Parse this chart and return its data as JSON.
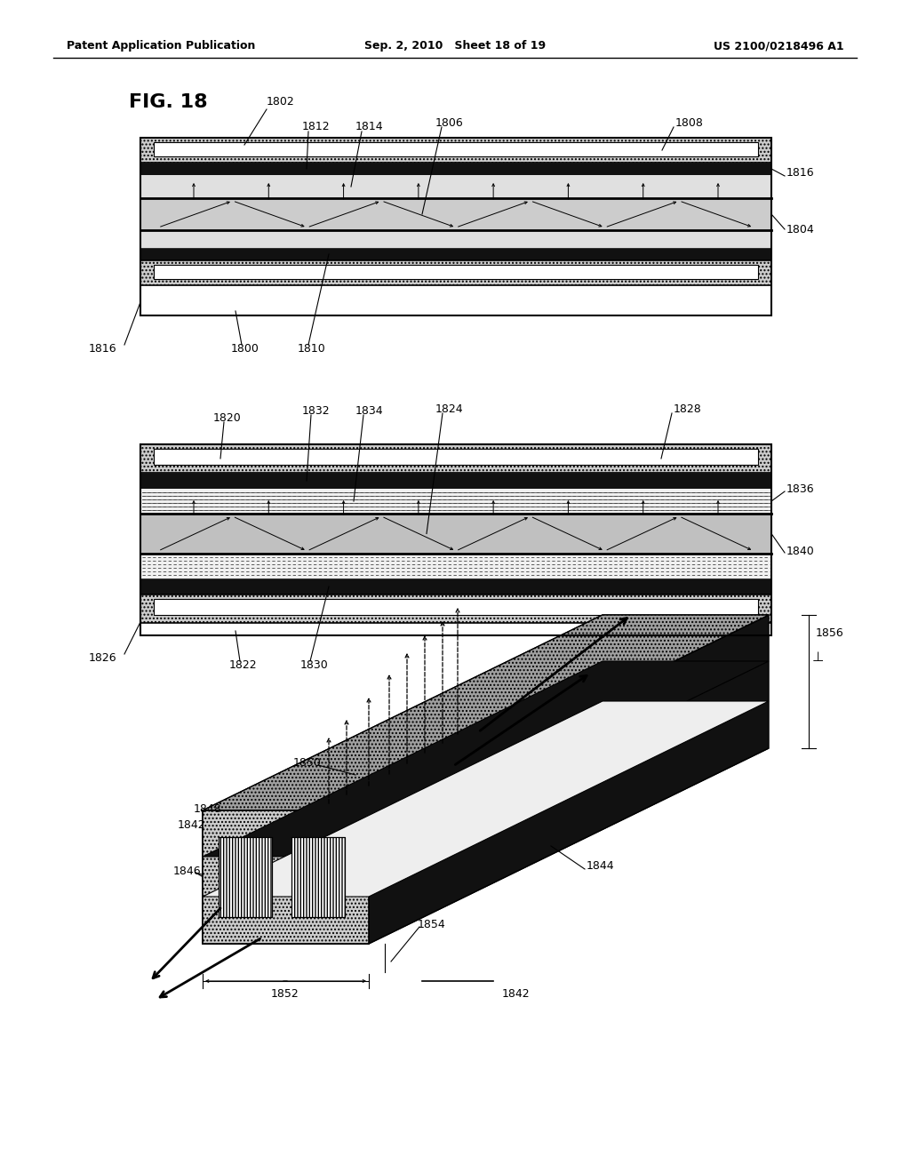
{
  "header_left": "Patent Application Publication",
  "header_mid": "Sep. 2, 2010   Sheet 18 of 19",
  "header_right": "US 2010/0218496 A1",
  "bg_color": "#ffffff"
}
